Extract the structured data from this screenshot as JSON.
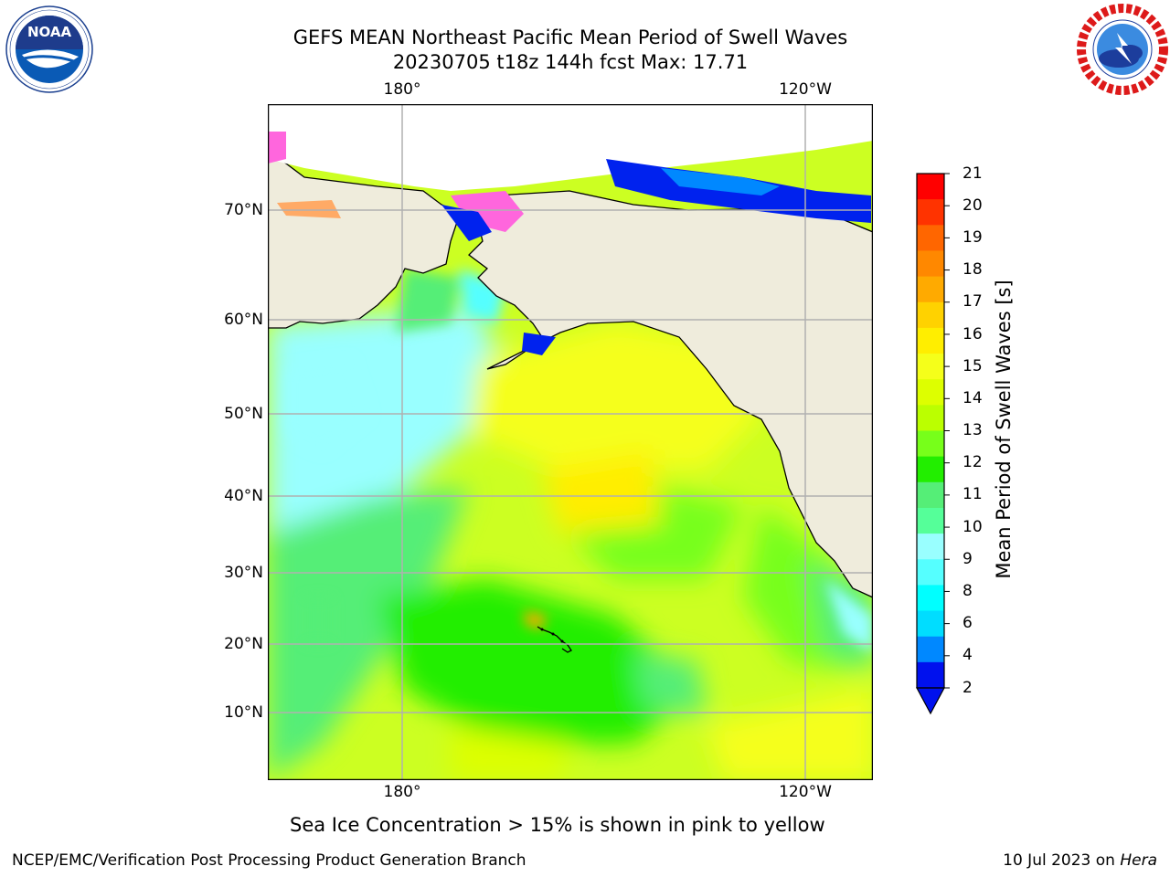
{
  "title_line1": "GEFS MEAN Northeast Pacific Mean Period of Swell Waves",
  "title_line2": "20230705 t18z 144h fcst   Max: 17.71",
  "logos": {
    "left": {
      "icon": "noaa-logo",
      "text": "NOAA",
      "ring_text": "NATIONAL OCEANIC AND ATMOSPHERIC ADMINISTRATION · U.S. DEPARTMENT OF COMMERCE"
    },
    "right": {
      "icon": "nws-logo",
      "ring_text": "NATIONAL WEATHER SERVICE"
    }
  },
  "map": {
    "lon_labels": [
      "180°",
      "120°W"
    ],
    "lat_labels": [
      "70°N",
      "60°N",
      "50°N",
      "40°N",
      "30°N",
      "20°N",
      "10°N"
    ],
    "land_color": "#efecdc",
    "grid_color": "#b0b0b0"
  },
  "colorbar": {
    "label": "Mean Period of Swell Waves [s]",
    "ticks": [
      "21",
      "20",
      "19",
      "18",
      "17",
      "16",
      "15",
      "14",
      "13",
      "12",
      "11",
      "10",
      "9",
      "8",
      "6",
      "4",
      "2"
    ],
    "colors_top_to_bottom": [
      "#ff0000",
      "#ff3300",
      "#ff6600",
      "#ff8800",
      "#ffaa00",
      "#ffd200",
      "#ffee00",
      "#f5ff1a",
      "#ddff00",
      "#bbff00",
      "#77ff1a",
      "#22ee00",
      "#55ee77",
      "#55ff99",
      "#99ffff",
      "#55ffff",
      "#00ffff",
      "#00ddff",
      "#0088ff",
      "#0011ee"
    ],
    "extend_color": "#0011ee"
  },
  "note": "Sea Ice Concentration > 15% is shown in pink to yellow",
  "footer": {
    "left": "NCEP/EMC/Verification Post Processing Product Generation Branch",
    "right_date": "10 Jul 2023 on",
    "right_host": "Hera"
  }
}
